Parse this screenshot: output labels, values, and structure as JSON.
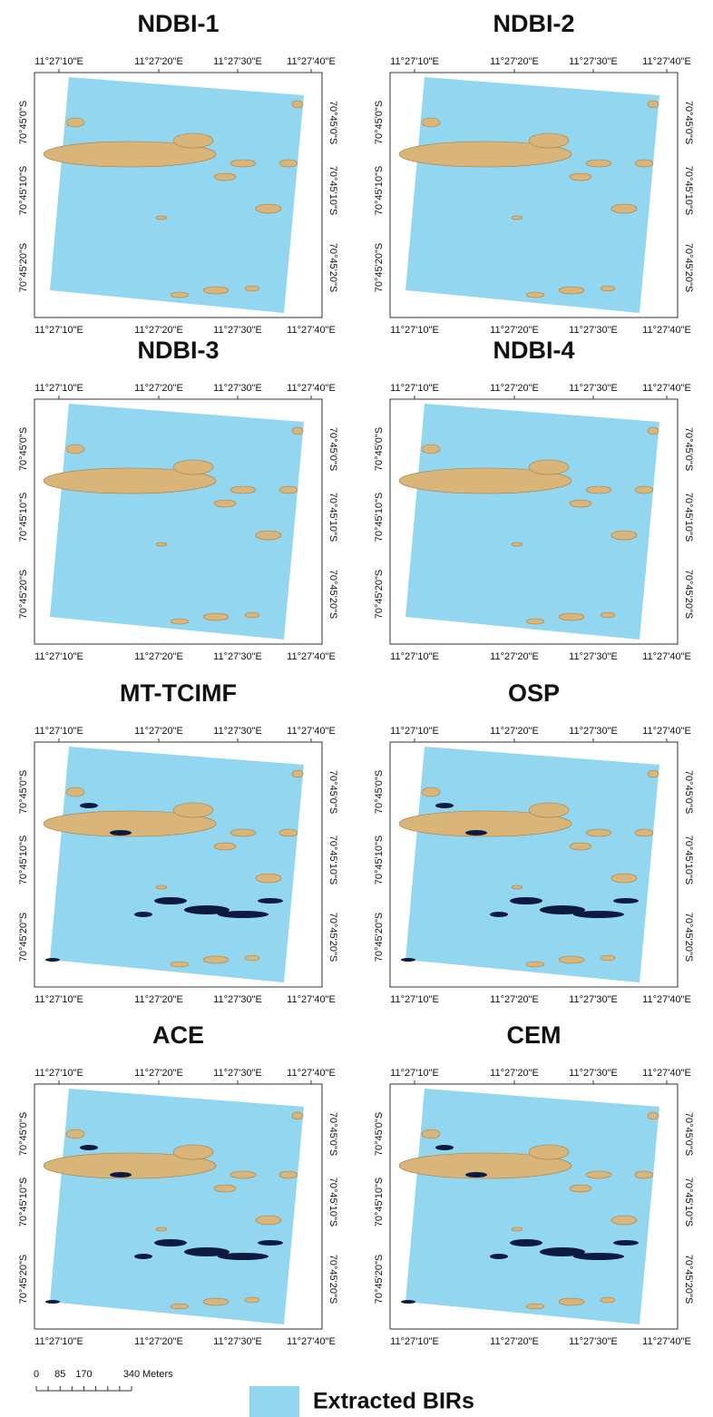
{
  "panels": [
    {
      "title": "NDBI-1"
    },
    {
      "title": "NDBI-2"
    },
    {
      "title": "NDBI-3"
    },
    {
      "title": "NDBI-4"
    },
    {
      "title": "MT-TCIMF"
    },
    {
      "title": "OSP"
    },
    {
      "title": "ACE"
    },
    {
      "title": "CEM"
    }
  ],
  "longitude_labels": [
    "11°27'10\"E",
    "11°27'20\"E",
    "11°27'30\"E",
    "11°27'40\"E"
  ],
  "latitude_labels": [
    "70°45'0\"S",
    "70°45'10\"S",
    "70°45'20\"S"
  ],
  "scale_bar": {
    "labels": [
      0,
      85,
      170,
      340
    ],
    "unit": "Meters"
  },
  "legend": {
    "label": "Extracted BIRs"
  }
}
